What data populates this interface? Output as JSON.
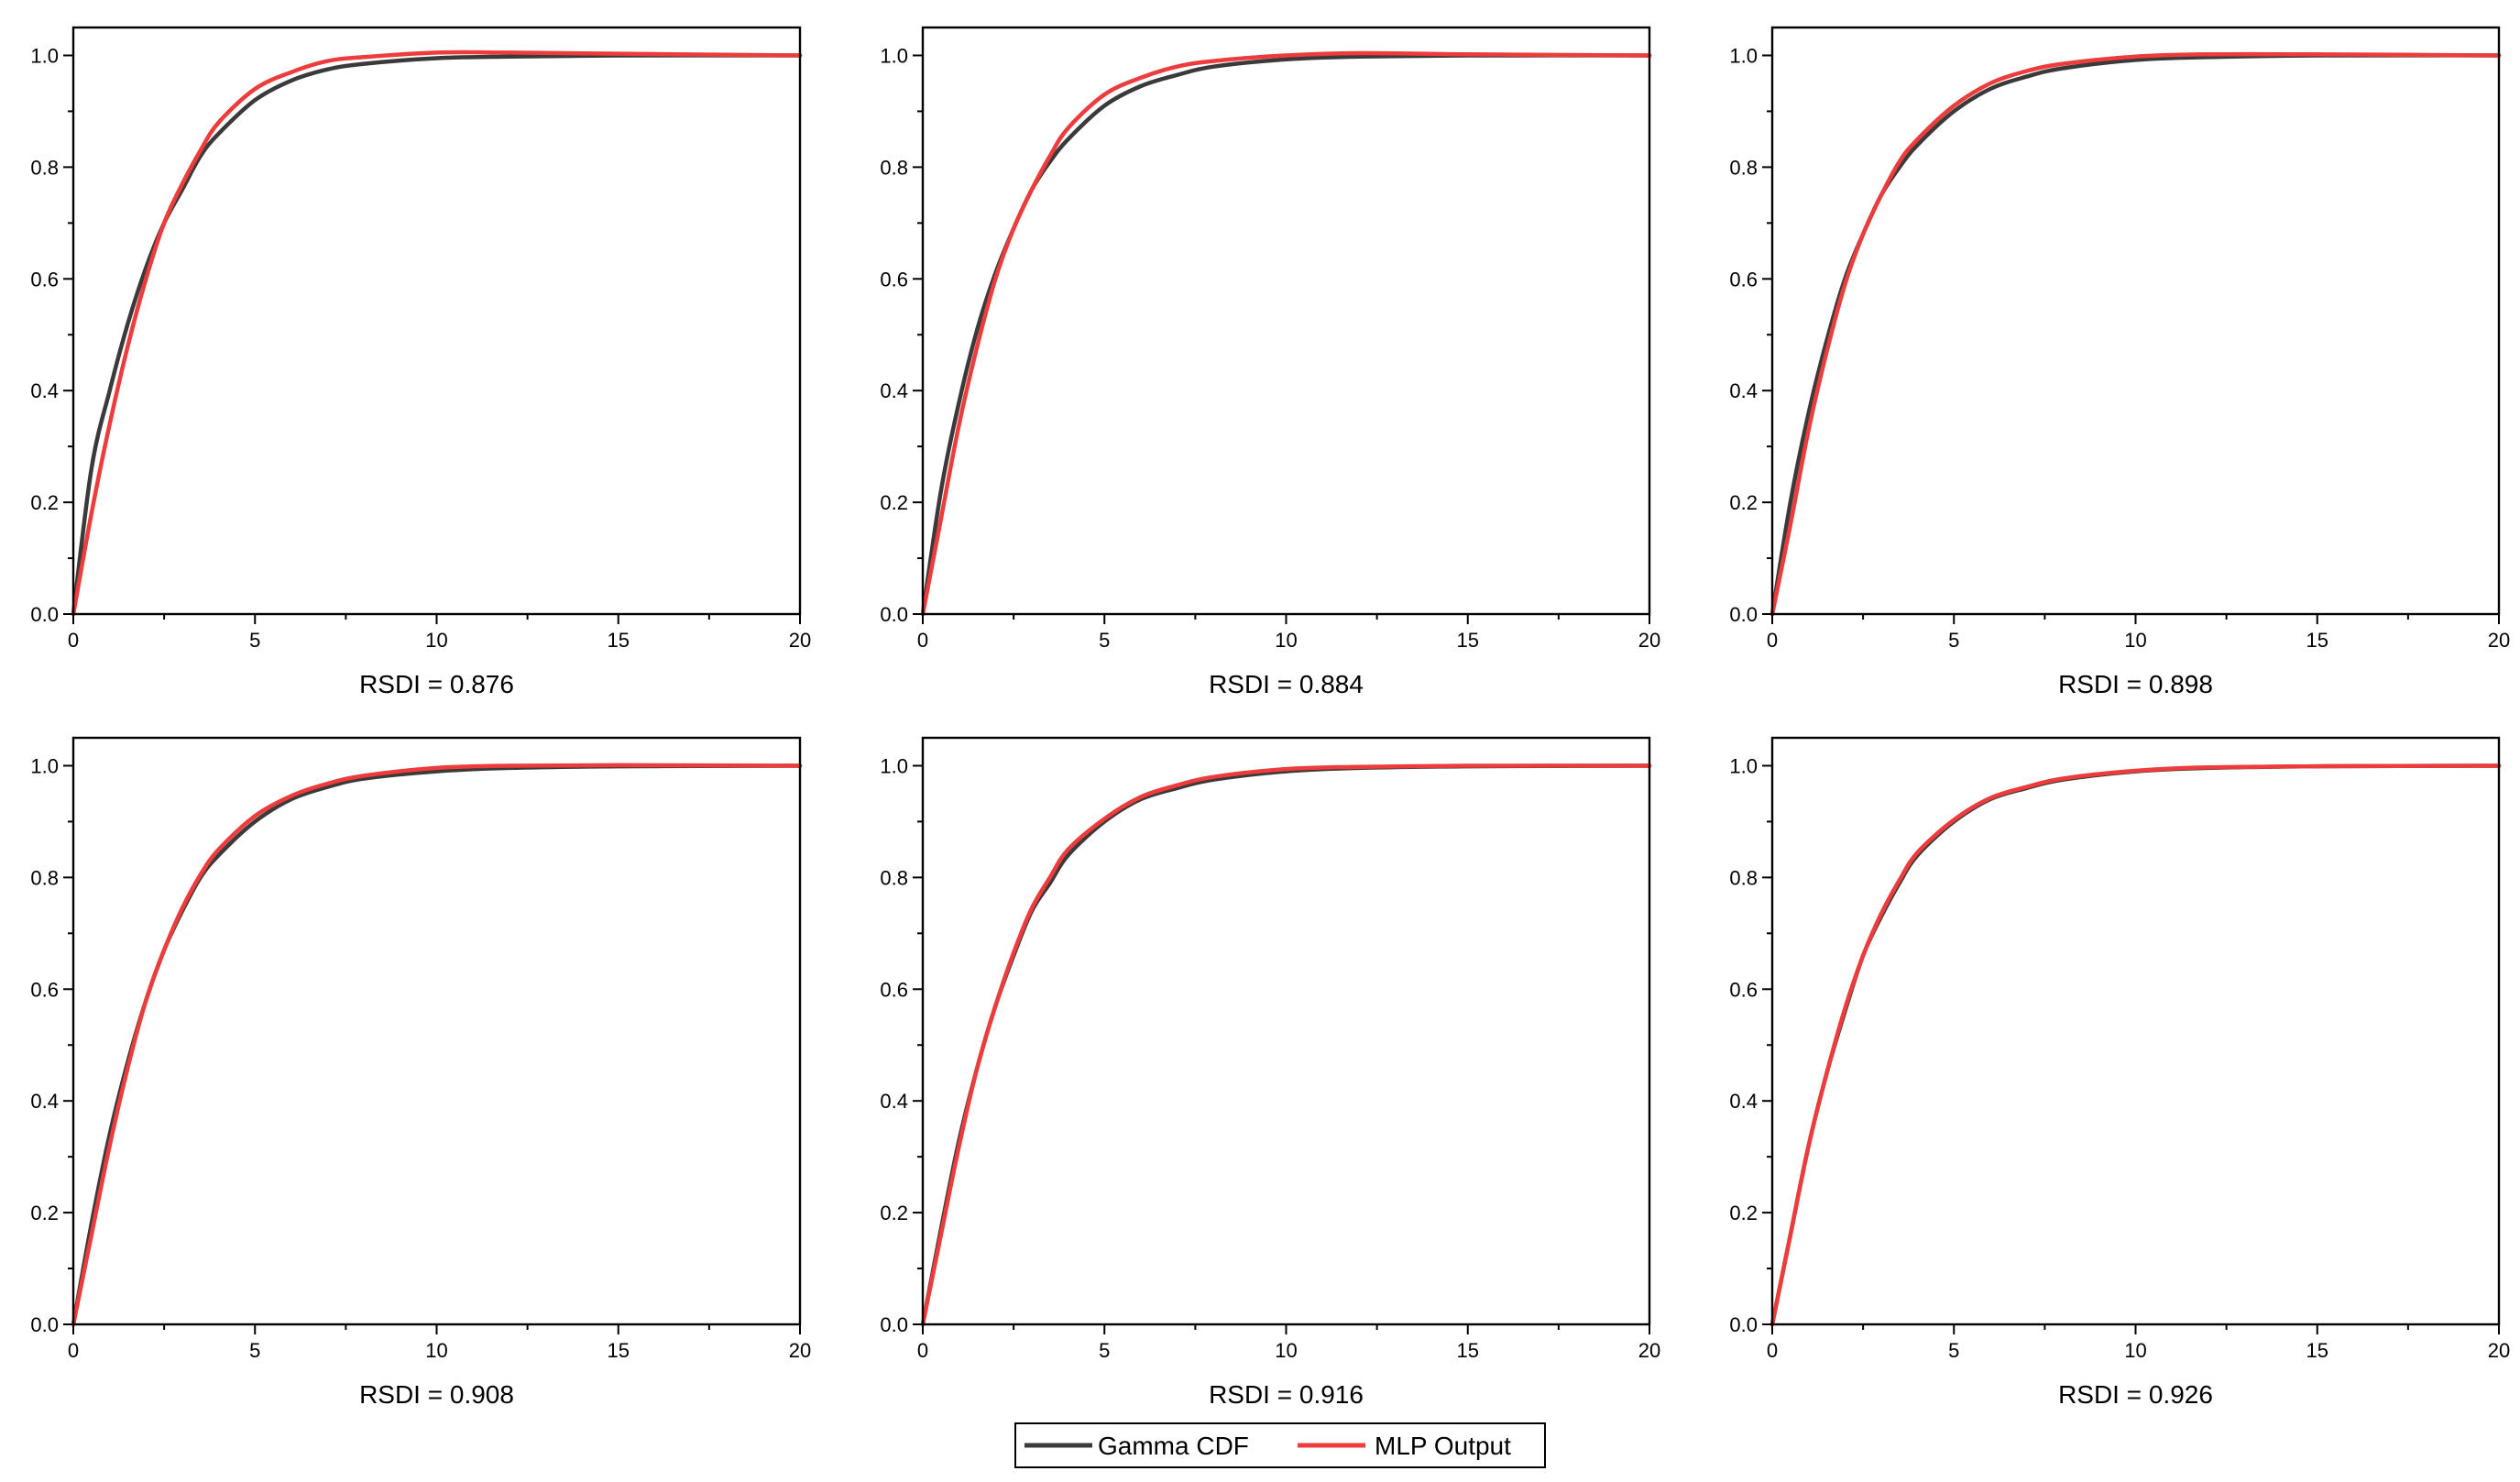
{
  "chart_data": [
    {
      "type": "line",
      "xlabel": "RSDI = 0.876",
      "xlim": [
        0,
        20
      ],
      "ylim": [
        0,
        1.0
      ],
      "xticks": [
        0,
        5,
        10,
        15,
        20
      ],
      "yticks": [
        "0.0",
        "0.2",
        "0.4",
        "0.6",
        "0.8",
        "1.0"
      ],
      "series": [
        {
          "name": "Gamma CDF",
          "color": "#3a3a3a",
          "x": [
            0,
            0.5,
            1,
            1.5,
            2,
            2.5,
            3,
            3.5,
            4,
            5,
            6,
            7,
            8,
            10,
            12,
            15,
            20
          ],
          "y": [
            0,
            0.26,
            0.4,
            0.52,
            0.62,
            0.7,
            0.76,
            0.82,
            0.86,
            0.92,
            0.955,
            0.975,
            0.985,
            0.995,
            0.998,
            1.0,
            1.0
          ]
        },
        {
          "name": "MLP Output",
          "color": "#ee3b3b",
          "x": [
            0,
            0.5,
            1,
            1.5,
            2,
            2.5,
            3,
            3.5,
            4,
            5,
            6,
            7,
            8,
            10,
            12,
            15,
            20
          ],
          "y": [
            0,
            0.18,
            0.34,
            0.48,
            0.6,
            0.7,
            0.77,
            0.83,
            0.88,
            0.94,
            0.97,
            0.99,
            0.997,
            1.005,
            1.005,
            1.003,
            1.0
          ]
        }
      ]
    },
    {
      "type": "line",
      "xlabel": "RSDI = 0.884",
      "xlim": [
        0,
        20
      ],
      "ylim": [
        0,
        1.0
      ],
      "xticks": [
        0,
        5,
        10,
        15,
        20
      ],
      "yticks": [
        "0.0",
        "0.2",
        "0.4",
        "0.6",
        "0.8",
        "1.0"
      ],
      "series": [
        {
          "name": "Gamma CDF",
          "color": "#3a3a3a",
          "x": [
            0,
            0.5,
            1,
            1.5,
            2,
            2.5,
            3,
            3.5,
            4,
            5,
            6,
            7,
            8,
            10,
            12,
            15,
            20
          ],
          "y": [
            0,
            0.22,
            0.38,
            0.51,
            0.61,
            0.69,
            0.76,
            0.81,
            0.85,
            0.91,
            0.945,
            0.965,
            0.98,
            0.993,
            0.998,
            1.0,
            1.0
          ]
        },
        {
          "name": "MLP Output",
          "color": "#ee3b3b",
          "x": [
            0,
            0.5,
            1,
            1.5,
            2,
            2.5,
            3,
            3.5,
            4,
            5,
            6,
            7,
            8,
            10,
            12,
            15,
            20
          ],
          "y": [
            0,
            0.17,
            0.34,
            0.48,
            0.6,
            0.69,
            0.76,
            0.82,
            0.87,
            0.93,
            0.96,
            0.98,
            0.99,
            1.0,
            1.004,
            1.002,
            1.0
          ]
        }
      ]
    },
    {
      "type": "line",
      "xlabel": "RSDI = 0.898",
      "xlim": [
        0,
        20
      ],
      "ylim": [
        0,
        1.0
      ],
      "xticks": [
        0,
        5,
        10,
        15,
        20
      ],
      "yticks": [
        "0.0",
        "0.2",
        "0.4",
        "0.6",
        "0.8",
        "1.0"
      ],
      "series": [
        {
          "name": "Gamma CDF",
          "color": "#3a3a3a",
          "x": [
            0,
            0.5,
            1,
            1.5,
            2,
            2.5,
            3,
            3.5,
            4,
            5,
            6,
            7,
            8,
            10,
            12,
            15,
            20
          ],
          "y": [
            0,
            0.2,
            0.36,
            0.49,
            0.6,
            0.68,
            0.75,
            0.8,
            0.84,
            0.9,
            0.94,
            0.962,
            0.977,
            0.992,
            0.997,
            1.0,
            1.0
          ]
        },
        {
          "name": "MLP Output",
          "color": "#ee3b3b",
          "x": [
            0,
            0.5,
            1,
            1.5,
            2,
            2.5,
            3,
            3.5,
            4,
            5,
            6,
            7,
            8,
            10,
            12,
            15,
            20
          ],
          "y": [
            0,
            0.16,
            0.33,
            0.47,
            0.59,
            0.68,
            0.75,
            0.81,
            0.85,
            0.91,
            0.95,
            0.972,
            0.985,
            0.998,
            1.002,
            1.002,
            1.0
          ]
        }
      ]
    },
    {
      "type": "line",
      "xlabel": "RSDI = 0.908",
      "xlim": [
        0,
        20
      ],
      "ylim": [
        0,
        1.0
      ],
      "xticks": [
        0,
        5,
        10,
        15,
        20
      ],
      "yticks": [
        "0.0",
        "0.2",
        "0.4",
        "0.6",
        "0.8",
        "1.0"
      ],
      "series": [
        {
          "name": "Gamma CDF",
          "color": "#3a3a3a",
          "x": [
            0,
            0.5,
            1,
            1.5,
            2,
            2.5,
            3,
            3.5,
            4,
            5,
            6,
            7,
            8,
            10,
            12,
            15,
            20
          ],
          "y": [
            0,
            0.18,
            0.34,
            0.47,
            0.58,
            0.67,
            0.74,
            0.8,
            0.84,
            0.9,
            0.94,
            0.962,
            0.977,
            0.99,
            0.996,
            0.999,
            1.0
          ]
        },
        {
          "name": "MLP Output",
          "color": "#ee3b3b",
          "x": [
            0,
            0.5,
            1,
            1.5,
            2,
            2.5,
            3,
            3.5,
            4,
            5,
            6,
            7,
            8,
            10,
            12,
            15,
            20
          ],
          "y": [
            0,
            0.16,
            0.32,
            0.46,
            0.58,
            0.67,
            0.745,
            0.805,
            0.85,
            0.91,
            0.946,
            0.968,
            0.982,
            0.996,
            1.0,
            1.001,
            1.0
          ]
        }
      ]
    },
    {
      "type": "line",
      "xlabel": "RSDI = 0.916",
      "xlim": [
        0,
        20
      ],
      "ylim": [
        0,
        1.0
      ],
      "xticks": [
        0,
        5,
        10,
        15,
        20
      ],
      "yticks": [
        "0.0",
        "0.2",
        "0.4",
        "0.6",
        "0.8",
        "1.0"
      ],
      "series": [
        {
          "name": "Gamma CDF",
          "color": "#3a3a3a",
          "x": [
            0,
            0.5,
            1,
            1.5,
            2,
            2.5,
            3,
            3.5,
            4,
            5,
            6,
            7,
            8,
            10,
            12,
            15,
            20
          ],
          "y": [
            0,
            0.17,
            0.33,
            0.46,
            0.57,
            0.66,
            0.74,
            0.79,
            0.84,
            0.9,
            0.94,
            0.96,
            0.975,
            0.99,
            0.996,
            0.999,
            1.0
          ]
        },
        {
          "name": "MLP Output",
          "color": "#ee3b3b",
          "x": [
            0,
            0.5,
            1,
            1.5,
            2,
            2.5,
            3,
            3.5,
            4,
            5,
            6,
            7,
            8,
            10,
            12,
            15,
            20
          ],
          "y": [
            0,
            0.16,
            0.32,
            0.46,
            0.57,
            0.665,
            0.745,
            0.8,
            0.85,
            0.905,
            0.944,
            0.965,
            0.98,
            0.994,
            0.998,
            1.0,
            1.0
          ]
        }
      ]
    },
    {
      "type": "line",
      "xlabel": "RSDI = 0.926",
      "xlim": [
        0,
        20
      ],
      "ylim": [
        0,
        1.0
      ],
      "xticks": [
        0,
        5,
        10,
        15,
        20
      ],
      "yticks": [
        "0.0",
        "0.2",
        "0.4",
        "0.6",
        "0.8",
        "1.0"
      ],
      "series": [
        {
          "name": "Gamma CDF",
          "color": "#3a3a3a",
          "x": [
            0,
            0.5,
            1,
            1.5,
            2,
            2.5,
            3,
            3.5,
            4,
            5,
            6,
            7,
            8,
            10,
            12,
            15,
            20
          ],
          "y": [
            0,
            0.16,
            0.32,
            0.45,
            0.56,
            0.66,
            0.73,
            0.79,
            0.84,
            0.9,
            0.94,
            0.96,
            0.975,
            0.99,
            0.996,
            0.999,
            1.0
          ]
        },
        {
          "name": "MLP Output",
          "color": "#ee3b3b",
          "x": [
            0,
            0.5,
            1,
            1.5,
            2,
            2.5,
            3,
            3.5,
            4,
            5,
            6,
            7,
            8,
            10,
            12,
            15,
            20
          ],
          "y": [
            0,
            0.16,
            0.32,
            0.45,
            0.565,
            0.66,
            0.735,
            0.795,
            0.845,
            0.903,
            0.942,
            0.962,
            0.977,
            0.991,
            0.997,
            0.999,
            1.0
          ]
        }
      ]
    }
  ],
  "legend": {
    "items": [
      {
        "label": "Gamma CDF",
        "color": "#3a3a3a"
      },
      {
        "label": "MLP Output",
        "color": "#ee3b3b"
      }
    ]
  }
}
